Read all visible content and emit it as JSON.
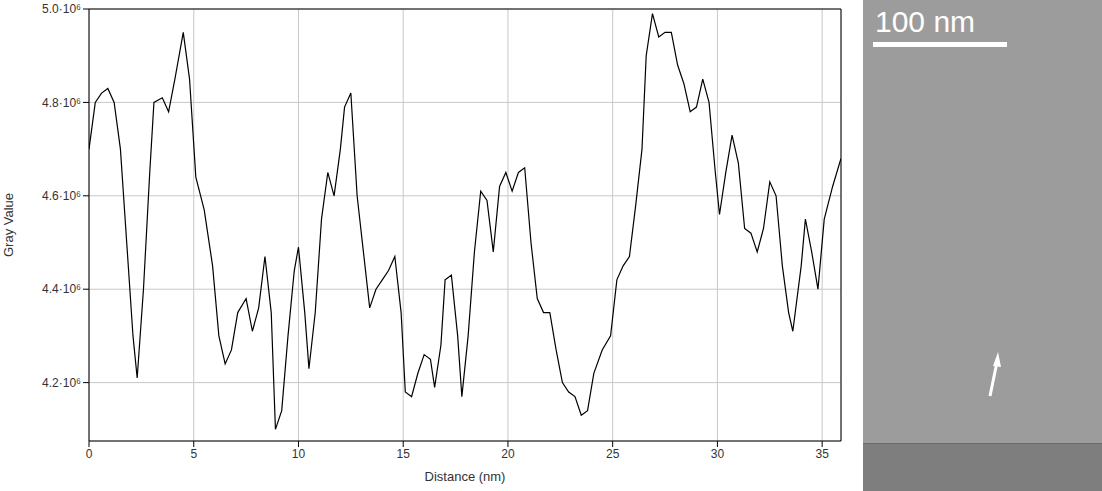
{
  "chart_data": {
    "type": "line",
    "x_label": "Distance (nm)",
    "y_label": "Gray Value",
    "xlim": [
      0,
      35.9
    ],
    "ylim": [
      4075000,
      5000000
    ],
    "xticks": [
      0,
      5,
      10,
      15,
      20,
      25,
      30,
      35
    ],
    "yticks": [
      {
        "value": 4200000,
        "label": "4.2·10⁶"
      },
      {
        "value": 4400000,
        "label": "4.4·10⁶"
      },
      {
        "value": 4600000,
        "label": "4.6·10⁶"
      },
      {
        "value": 4800000,
        "label": "4.8·10⁶"
      },
      {
        "value": 5000000,
        "label": "5.0·10⁶"
      }
    ],
    "grid": true,
    "color": "#000000",
    "x": [
      0,
      0.3,
      0.6,
      0.9,
      1.2,
      1.5,
      1.8,
      2.1,
      2.3,
      2.6,
      2.9,
      3.1,
      3.5,
      3.8,
      4.1,
      4.5,
      4.8,
      5.1,
      5.5,
      5.9,
      6.2,
      6.5,
      6.8,
      7.1,
      7.5,
      7.8,
      8.1,
      8.4,
      8.7,
      8.9,
      9.2,
      9.5,
      9.8,
      10.0,
      10.3,
      10.5,
      10.8,
      11.1,
      11.4,
      11.7,
      12.0,
      12.2,
      12.5,
      12.8,
      13.1,
      13.4,
      13.7,
      14.0,
      14.3,
      14.6,
      14.9,
      15.1,
      15.4,
      15.7,
      16.0,
      16.3,
      16.5,
      16.8,
      17.0,
      17.3,
      17.6,
      17.8,
      18.1,
      18.4,
      18.7,
      19.0,
      19.3,
      19.6,
      19.9,
      20.2,
      20.5,
      20.8,
      21.1,
      21.4,
      21.7,
      22.0,
      22.3,
      22.6,
      22.9,
      23.2,
      23.5,
      23.8,
      24.1,
      24.5,
      24.9,
      25.2,
      25.5,
      25.8,
      26.1,
      26.4,
      26.6,
      26.9,
      27.2,
      27.5,
      27.8,
      28.1,
      28.4,
      28.7,
      29.0,
      29.3,
      29.6,
      29.9,
      30.1,
      30.4,
      30.7,
      31.0,
      31.3,
      31.6,
      31.9,
      32.2,
      32.5,
      32.8,
      33.1,
      33.4,
      33.6,
      34.0,
      34.2,
      34.5,
      34.8,
      35.1,
      35.5,
      35.9
    ],
    "values": [
      4700000,
      4800000,
      4820000,
      4830000,
      4800000,
      4700000,
      4500000,
      4300000,
      4210000,
      4400000,
      4650000,
      4800000,
      4810000,
      4780000,
      4850000,
      4950000,
      4850000,
      4640000,
      4570000,
      4450000,
      4300000,
      4240000,
      4270000,
      4350000,
      4380000,
      4310000,
      4360000,
      4470000,
      4350000,
      4100000,
      4140000,
      4300000,
      4440000,
      4490000,
      4350000,
      4230000,
      4350000,
      4550000,
      4650000,
      4600000,
      4700000,
      4790000,
      4820000,
      4600000,
      4480000,
      4360000,
      4400000,
      4420000,
      4440000,
      4470000,
      4350000,
      4180000,
      4170000,
      4220000,
      4260000,
      4250000,
      4190000,
      4280000,
      4420000,
      4430000,
      4300000,
      4170000,
      4300000,
      4480000,
      4610000,
      4590000,
      4480000,
      4620000,
      4650000,
      4610000,
      4650000,
      4660000,
      4500000,
      4380000,
      4350000,
      4350000,
      4270000,
      4200000,
      4180000,
      4170000,
      4130000,
      4140000,
      4220000,
      4270000,
      4300000,
      4420000,
      4450000,
      4470000,
      4580000,
      4700000,
      4900000,
      4990000,
      4940000,
      4950000,
      4950000,
      4880000,
      4840000,
      4780000,
      4790000,
      4850000,
      4800000,
      4650000,
      4560000,
      4650000,
      4730000,
      4670000,
      4530000,
      4520000,
      4480000,
      4530000,
      4630000,
      4600000,
      4450000,
      4350000,
      4310000,
      4450000,
      4550000,
      4480000,
      4400000,
      4550000,
      4620000,
      4680000
    ]
  },
  "micrograph": {
    "scale_bar_label": "100 nm"
  }
}
